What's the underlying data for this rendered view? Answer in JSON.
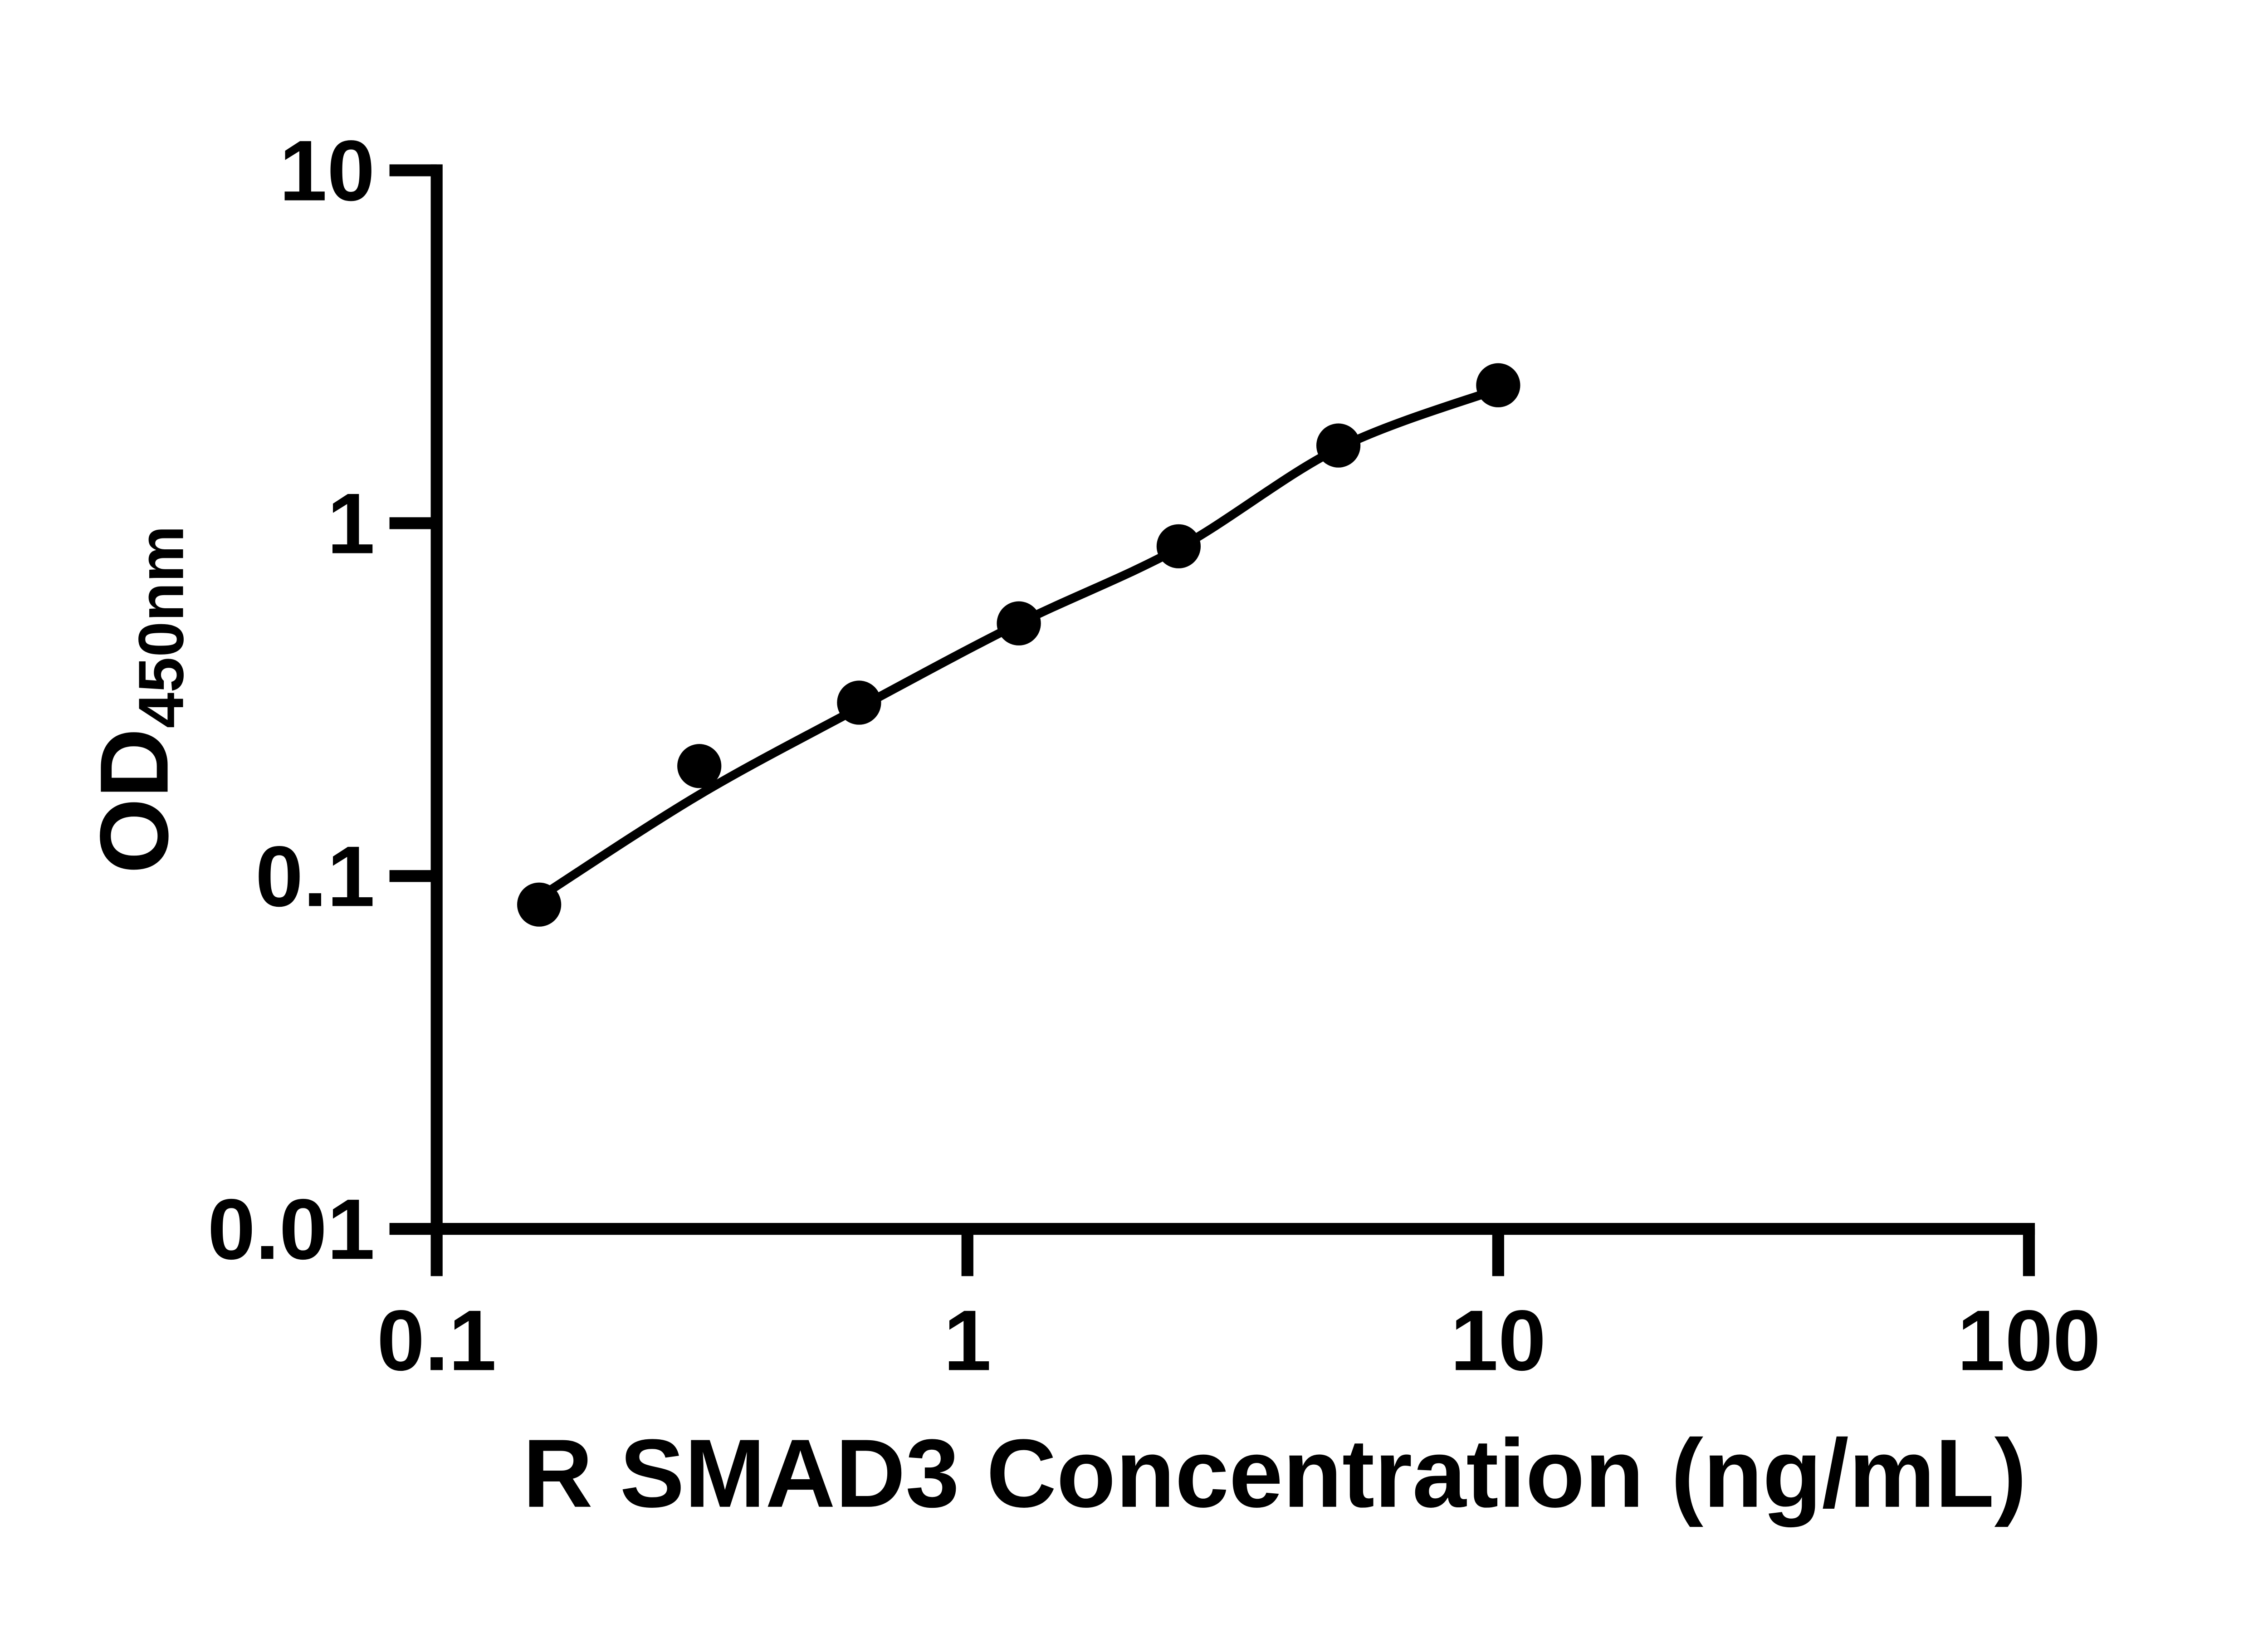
{
  "chart_data": {
    "type": "scatter",
    "title": "",
    "xlabel": "R SMAD3 Concentration (ng/mL)",
    "ylabel_main": "OD",
    "ylabel_subscript": "450nm",
    "axes": {
      "x": {
        "scale": "log10",
        "min": 0.1,
        "max": 100,
        "ticks": [
          {
            "value": 0.1,
            "label": "0.1"
          },
          {
            "value": 1,
            "label": "1"
          },
          {
            "value": 10,
            "label": "10"
          },
          {
            "value": 100,
            "label": "100"
          }
        ]
      },
      "y": {
        "scale": "log10",
        "min": 0.01,
        "max": 10,
        "ticks": [
          {
            "value": 10,
            "label": "10"
          },
          {
            "value": 1,
            "label": "1"
          },
          {
            "value": 0.1,
            "label": "0.1"
          },
          {
            "value": 0.01,
            "label": "0.01"
          }
        ]
      }
    },
    "grid": false,
    "legend": "none",
    "series": [
      {
        "name": "standards",
        "type": "scatter",
        "marker": "filled-circle",
        "x": [
          0.156,
          0.3125,
          0.625,
          1.25,
          2.5,
          5,
          10
        ],
        "y": [
          0.083,
          0.205,
          0.31,
          0.52,
          0.86,
          1.66,
          2.46
        ]
      },
      {
        "name": "fit-curve",
        "type": "smooth-line",
        "x": [
          0.156,
          0.3125,
          0.625,
          1.25,
          2.5,
          5,
          10
        ],
        "y": [
          0.087,
          0.17,
          0.3,
          0.52,
          0.85,
          1.63,
          2.4
        ]
      }
    ],
    "colors": {
      "background": "#ffffff",
      "ink": "#000000"
    }
  }
}
